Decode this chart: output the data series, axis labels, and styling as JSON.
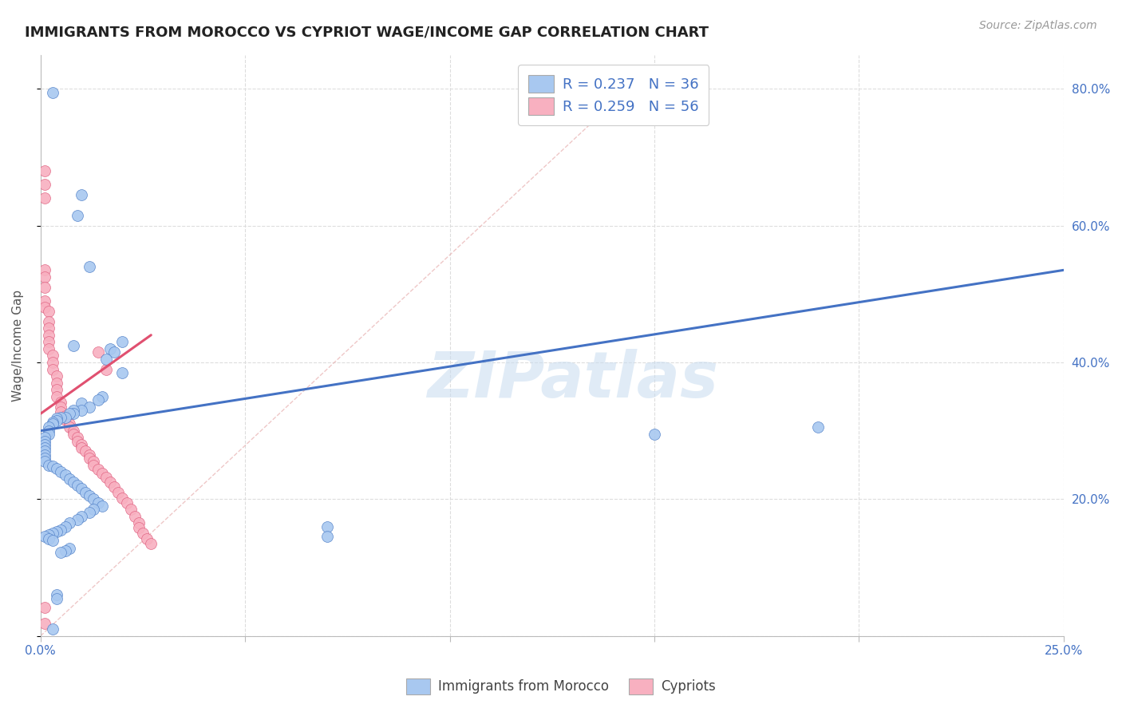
{
  "title": "IMMIGRANTS FROM MOROCCO VS CYPRIOT WAGE/INCOME GAP CORRELATION CHART",
  "source": "Source: ZipAtlas.com",
  "ylabel_text": "Wage/Income Gap",
  "x_min": 0.0,
  "x_max": 0.25,
  "y_min": 0.0,
  "y_max": 0.85,
  "x_ticks": [
    0.0,
    0.05,
    0.1,
    0.15,
    0.2,
    0.25
  ],
  "x_tick_labels": [
    "0.0%",
    "",
    "",
    "",
    "",
    "25.0%"
  ],
  "y_ticks": [
    0.0,
    0.2,
    0.4,
    0.6,
    0.8
  ],
  "y_tick_labels": [
    "",
    "20.0%",
    "40.0%",
    "60.0%",
    "80.0%"
  ],
  "color_blue": "#A8C8F0",
  "color_pink": "#F8B0C0",
  "color_blue_edge": "#5080C8",
  "color_pink_edge": "#E06080",
  "color_blue_text": "#4472C4",
  "color_pink_text": "#E05070",
  "watermark": "ZIPatlas",
  "grid_color": "#DDDDDD",
  "blue_scatter": [
    [
      0.003,
      0.795
    ],
    [
      0.01,
      0.645
    ],
    [
      0.009,
      0.615
    ],
    [
      0.012,
      0.54
    ],
    [
      0.008,
      0.425
    ],
    [
      0.02,
      0.43
    ],
    [
      0.017,
      0.42
    ],
    [
      0.018,
      0.415
    ],
    [
      0.016,
      0.405
    ],
    [
      0.02,
      0.385
    ],
    [
      0.015,
      0.35
    ],
    [
      0.014,
      0.345
    ],
    [
      0.01,
      0.34
    ],
    [
      0.012,
      0.335
    ],
    [
      0.01,
      0.33
    ],
    [
      0.008,
      0.33
    ],
    [
      0.008,
      0.325
    ],
    [
      0.007,
      0.325
    ],
    [
      0.006,
      0.32
    ],
    [
      0.005,
      0.32
    ],
    [
      0.004,
      0.318
    ],
    [
      0.004,
      0.315
    ],
    [
      0.003,
      0.313
    ],
    [
      0.003,
      0.31
    ],
    [
      0.002,
      0.305
    ],
    [
      0.002,
      0.3
    ],
    [
      0.002,
      0.295
    ],
    [
      0.001,
      0.29
    ],
    [
      0.001,
      0.285
    ],
    [
      0.001,
      0.28
    ],
    [
      0.001,
      0.275
    ],
    [
      0.001,
      0.27
    ],
    [
      0.001,
      0.265
    ],
    [
      0.001,
      0.26
    ],
    [
      0.001,
      0.255
    ],
    [
      0.002,
      0.25
    ],
    [
      0.003,
      0.248
    ],
    [
      0.004,
      0.245
    ],
    [
      0.005,
      0.24
    ],
    [
      0.006,
      0.235
    ],
    [
      0.007,
      0.23
    ],
    [
      0.008,
      0.225
    ],
    [
      0.009,
      0.22
    ],
    [
      0.01,
      0.215
    ],
    [
      0.011,
      0.21
    ],
    [
      0.012,
      0.205
    ],
    [
      0.013,
      0.2
    ],
    [
      0.014,
      0.195
    ],
    [
      0.015,
      0.19
    ],
    [
      0.013,
      0.185
    ],
    [
      0.012,
      0.18
    ],
    [
      0.01,
      0.175
    ],
    [
      0.009,
      0.17
    ],
    [
      0.007,
      0.165
    ],
    [
      0.006,
      0.16
    ],
    [
      0.005,
      0.155
    ],
    [
      0.004,
      0.152
    ],
    [
      0.003,
      0.15
    ],
    [
      0.002,
      0.148
    ],
    [
      0.001,
      0.145
    ],
    [
      0.002,
      0.142
    ],
    [
      0.003,
      0.14
    ],
    [
      0.007,
      0.128
    ],
    [
      0.006,
      0.125
    ],
    [
      0.005,
      0.122
    ],
    [
      0.004,
      0.06
    ],
    [
      0.004,
      0.055
    ],
    [
      0.003,
      0.01
    ],
    [
      0.07,
      0.16
    ],
    [
      0.07,
      0.145
    ],
    [
      0.15,
      0.295
    ],
    [
      0.19,
      0.305
    ]
  ],
  "pink_scatter": [
    [
      0.001,
      0.68
    ],
    [
      0.001,
      0.66
    ],
    [
      0.001,
      0.64
    ],
    [
      0.001,
      0.535
    ],
    [
      0.001,
      0.525
    ],
    [
      0.001,
      0.51
    ],
    [
      0.001,
      0.49
    ],
    [
      0.001,
      0.48
    ],
    [
      0.002,
      0.475
    ],
    [
      0.002,
      0.46
    ],
    [
      0.002,
      0.45
    ],
    [
      0.002,
      0.44
    ],
    [
      0.002,
      0.43
    ],
    [
      0.002,
      0.42
    ],
    [
      0.003,
      0.41
    ],
    [
      0.003,
      0.4
    ],
    [
      0.003,
      0.39
    ],
    [
      0.004,
      0.38
    ],
    [
      0.004,
      0.37
    ],
    [
      0.004,
      0.36
    ],
    [
      0.004,
      0.35
    ],
    [
      0.005,
      0.342
    ],
    [
      0.005,
      0.335
    ],
    [
      0.005,
      0.328
    ],
    [
      0.006,
      0.322
    ],
    [
      0.006,
      0.316
    ],
    [
      0.007,
      0.31
    ],
    [
      0.007,
      0.305
    ],
    [
      0.008,
      0.3
    ],
    [
      0.008,
      0.295
    ],
    [
      0.009,
      0.29
    ],
    [
      0.009,
      0.285
    ],
    [
      0.01,
      0.28
    ],
    [
      0.01,
      0.275
    ],
    [
      0.011,
      0.27
    ],
    [
      0.012,
      0.265
    ],
    [
      0.012,
      0.26
    ],
    [
      0.013,
      0.255
    ],
    [
      0.013,
      0.25
    ],
    [
      0.014,
      0.244
    ],
    [
      0.015,
      0.238
    ],
    [
      0.016,
      0.232
    ],
    [
      0.017,
      0.225
    ],
    [
      0.018,
      0.218
    ],
    [
      0.019,
      0.21
    ],
    [
      0.02,
      0.202
    ],
    [
      0.021,
      0.195
    ],
    [
      0.022,
      0.185
    ],
    [
      0.023,
      0.175
    ],
    [
      0.024,
      0.165
    ],
    [
      0.024,
      0.158
    ],
    [
      0.025,
      0.15
    ],
    [
      0.026,
      0.142
    ],
    [
      0.027,
      0.135
    ],
    [
      0.014,
      0.415
    ],
    [
      0.016,
      0.39
    ],
    [
      0.001,
      0.042
    ],
    [
      0.001,
      0.018
    ]
  ],
  "blue_line_x": [
    0.0,
    0.25
  ],
  "blue_line_y": [
    0.3,
    0.535
  ],
  "pink_line_x": [
    0.0,
    0.027
  ],
  "pink_line_y": [
    0.325,
    0.44
  ],
  "diagonal_line_x": [
    0.0,
    0.14
  ],
  "diagonal_line_y": [
    0.0,
    0.78
  ]
}
